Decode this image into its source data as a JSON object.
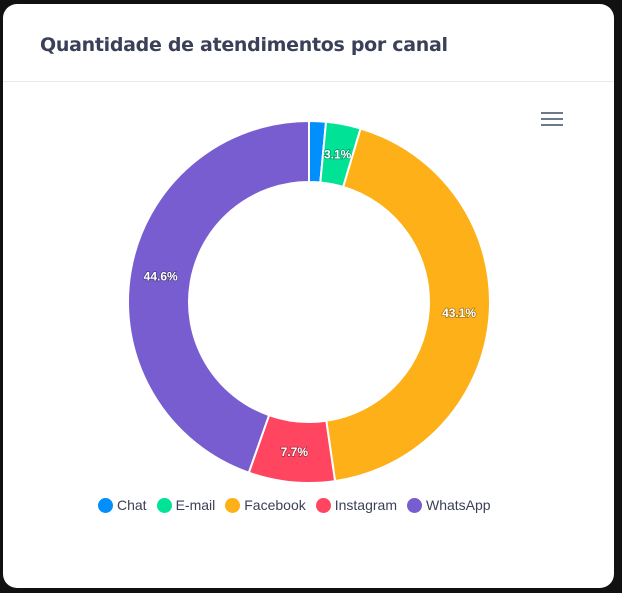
{
  "card": {
    "title": "Quantidade de atendimentos por canal",
    "menu_icon": "hamburger-menu-icon"
  },
  "chart_data": {
    "type": "donut",
    "title": "Quantidade de atendimentos por canal",
    "categories": [
      "Chat",
      "E-mail",
      "Facebook",
      "Instagram",
      "WhatsApp"
    ],
    "values": [
      1.5,
      3.1,
      43.1,
      7.7,
      44.6
    ],
    "labels": [
      "",
      "3.1%",
      "43.1%",
      "7.7%",
      "44.6%"
    ],
    "colors": [
      "#008ffb",
      "#00e396",
      "#feb019",
      "#ff4560",
      "#775dd0"
    ],
    "legend_position": "bottom"
  }
}
